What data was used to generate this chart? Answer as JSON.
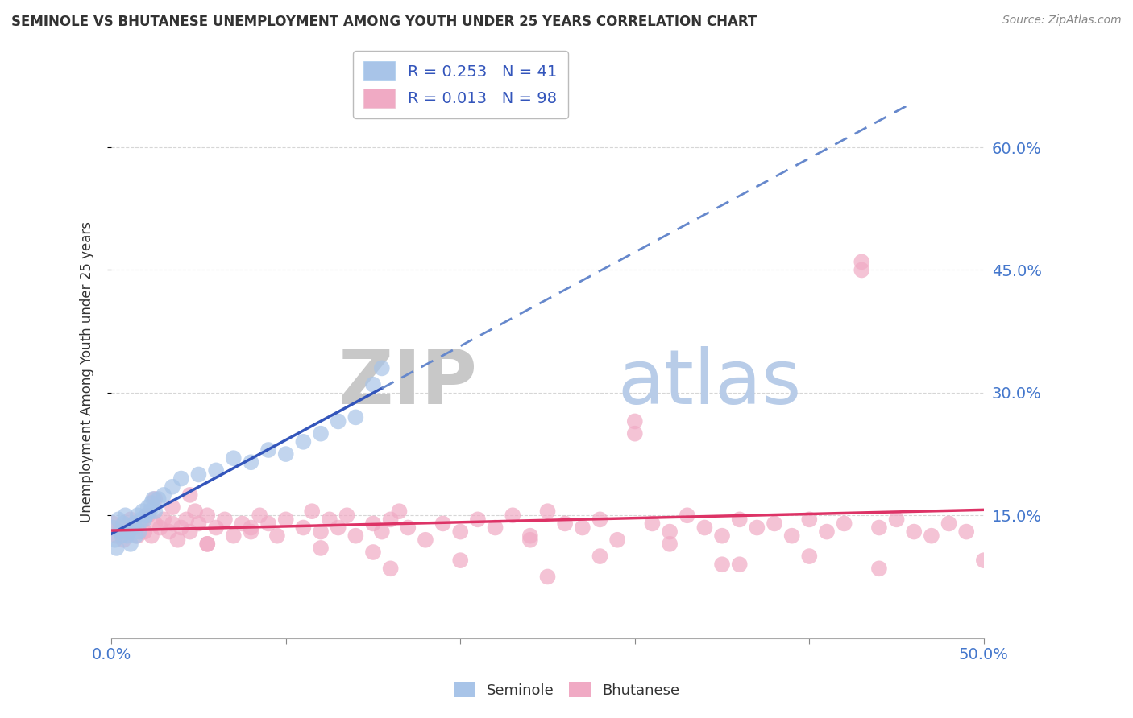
{
  "title": "SEMINOLE VS BHUTANESE UNEMPLOYMENT AMONG YOUTH UNDER 25 YEARS CORRELATION CHART",
  "source": "Source: ZipAtlas.com",
  "ylabel": "Unemployment Among Youth under 25 years",
  "xlim": [
    0.0,
    0.5
  ],
  "ylim": [
    0.0,
    0.65
  ],
  "yticks": [
    0.15,
    0.3,
    0.45,
    0.6
  ],
  "ytick_labels": [
    "15.0%",
    "30.0%",
    "45.0%",
    "60.0%"
  ],
  "xtick_labels": [
    "0.0%",
    "50.0%"
  ],
  "seminole_R": 0.253,
  "seminole_N": 41,
  "bhutanese_R": 0.013,
  "bhutanese_N": 98,
  "seminole_color": "#a8c4e8",
  "bhutanese_color": "#f0aac4",
  "seminole_line_color": "#3355bb",
  "bhutanese_line_color": "#dd3366",
  "seminole_dashed_color": "#6688cc",
  "grid_color": "#cccccc",
  "watermark_zip": "ZIP",
  "watermark_atlas": "atlas",
  "seminole_x": [
    0.001,
    0.002,
    0.003,
    0.004,
    0.005,
    0.006,
    0.007,
    0.008,
    0.009,
    0.01,
    0.011,
    0.012,
    0.013,
    0.014,
    0.015,
    0.016,
    0.017,
    0.018,
    0.019,
    0.02,
    0.021,
    0.022,
    0.023,
    0.024,
    0.025,
    0.027,
    0.03,
    0.035,
    0.04,
    0.05,
    0.06,
    0.07,
    0.08,
    0.09,
    0.1,
    0.11,
    0.12,
    0.13,
    0.14,
    0.15,
    0.155
  ],
  "seminole_y": [
    0.135,
    0.12,
    0.11,
    0.145,
    0.13,
    0.125,
    0.14,
    0.15,
    0.125,
    0.13,
    0.115,
    0.135,
    0.14,
    0.125,
    0.15,
    0.13,
    0.145,
    0.155,
    0.145,
    0.15,
    0.16,
    0.155,
    0.165,
    0.17,
    0.155,
    0.17,
    0.175,
    0.185,
    0.195,
    0.2,
    0.205,
    0.22,
    0.215,
    0.23,
    0.225,
    0.24,
    0.25,
    0.265,
    0.27,
    0.31,
    0.33
  ],
  "bhutanese_x": [
    0.001,
    0.003,
    0.005,
    0.007,
    0.009,
    0.011,
    0.013,
    0.015,
    0.017,
    0.019,
    0.021,
    0.023,
    0.025,
    0.028,
    0.03,
    0.033,
    0.035,
    0.038,
    0.04,
    0.043,
    0.045,
    0.048,
    0.05,
    0.055,
    0.06,
    0.065,
    0.07,
    0.075,
    0.08,
    0.085,
    0.09,
    0.095,
    0.1,
    0.11,
    0.115,
    0.12,
    0.125,
    0.13,
    0.135,
    0.14,
    0.15,
    0.155,
    0.16,
    0.165,
    0.17,
    0.18,
    0.19,
    0.2,
    0.21,
    0.22,
    0.23,
    0.24,
    0.25,
    0.26,
    0.27,
    0.28,
    0.29,
    0.3,
    0.31,
    0.32,
    0.33,
    0.34,
    0.35,
    0.36,
    0.37,
    0.38,
    0.39,
    0.4,
    0.41,
    0.42,
    0.43,
    0.44,
    0.45,
    0.46,
    0.47,
    0.48,
    0.49,
    0.5,
    0.025,
    0.035,
    0.045,
    0.055,
    0.3,
    0.43,
    0.15,
    0.25,
    0.35,
    0.055,
    0.08,
    0.12,
    0.16,
    0.2,
    0.24,
    0.28,
    0.32,
    0.36,
    0.4,
    0.44
  ],
  "bhutanese_y": [
    0.14,
    0.125,
    0.135,
    0.12,
    0.13,
    0.145,
    0.135,
    0.125,
    0.14,
    0.13,
    0.15,
    0.125,
    0.14,
    0.135,
    0.145,
    0.13,
    0.14,
    0.12,
    0.135,
    0.145,
    0.13,
    0.155,
    0.14,
    0.15,
    0.135,
    0.145,
    0.125,
    0.14,
    0.135,
    0.15,
    0.14,
    0.125,
    0.145,
    0.135,
    0.155,
    0.13,
    0.145,
    0.135,
    0.15,
    0.125,
    0.14,
    0.13,
    0.145,
    0.155,
    0.135,
    0.12,
    0.14,
    0.13,
    0.145,
    0.135,
    0.15,
    0.125,
    0.155,
    0.14,
    0.135,
    0.145,
    0.12,
    0.25,
    0.14,
    0.13,
    0.15,
    0.135,
    0.125,
    0.145,
    0.135,
    0.14,
    0.125,
    0.145,
    0.13,
    0.14,
    0.45,
    0.135,
    0.145,
    0.13,
    0.125,
    0.14,
    0.13,
    0.095,
    0.17,
    0.16,
    0.175,
    0.115,
    0.265,
    0.46,
    0.105,
    0.075,
    0.09,
    0.115,
    0.13,
    0.11,
    0.085,
    0.095,
    0.12,
    0.1,
    0.115,
    0.09,
    0.1,
    0.085
  ]
}
